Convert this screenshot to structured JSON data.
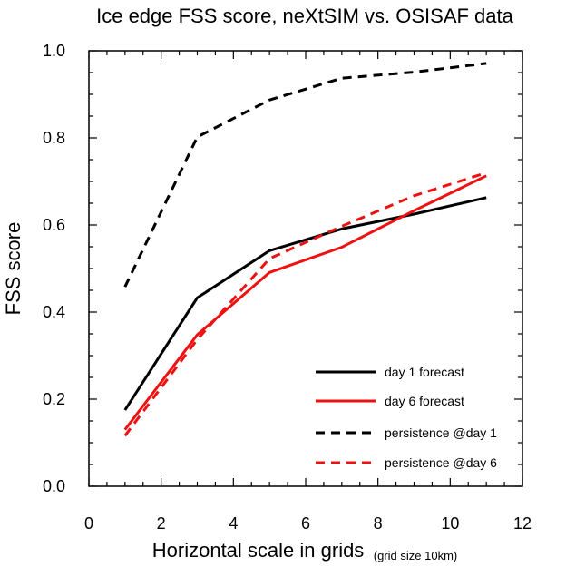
{
  "chart_data": {
    "type": "line",
    "title": "Ice edge FSS score, neXtSIM vs. OSISAF data",
    "xlabel": "Horizontal scale in grids",
    "xlabel_note": "(grid size 10km)",
    "ylabel": "FSS score",
    "xlim": [
      0,
      12
    ],
    "ylim": [
      0,
      1.0
    ],
    "xticks": [
      0,
      2,
      4,
      6,
      8,
      10,
      12
    ],
    "xtick_labels": [
      "0",
      "2",
      "4",
      "6",
      "8",
      "10",
      "12"
    ],
    "yticks": [
      0,
      0.2,
      0.4,
      0.6,
      0.8,
      1.0
    ],
    "ytick_labels": [
      "0.0",
      "0.2",
      "0.4",
      "0.6",
      "0.8",
      "1.0"
    ],
    "grid": false,
    "legend_position": "bottom-right",
    "series": [
      {
        "name": "day 1 forecast",
        "color": "#000000",
        "dash": "solid",
        "x": [
          1,
          3,
          5,
          7,
          9,
          11
        ],
        "values": [
          0.175,
          0.433,
          0.541,
          0.591,
          0.625,
          0.663
        ]
      },
      {
        "name": "day 6 forecast",
        "color": "#ee1111",
        "dash": "solid",
        "x": [
          1,
          3,
          5,
          7,
          9,
          11
        ],
        "values": [
          0.13,
          0.348,
          0.491,
          0.549,
          0.633,
          0.713
        ]
      },
      {
        "name": "persistence @day 1",
        "color": "#000000",
        "dash": "dashed",
        "x": [
          1,
          3,
          5,
          7,
          9,
          11
        ],
        "values": [
          0.458,
          0.802,
          0.887,
          0.937,
          0.951,
          0.971
        ]
      },
      {
        "name": "persistence @day 6",
        "color": "#ee1111",
        "dash": "dashed",
        "x": [
          1,
          3,
          5,
          7,
          9,
          11
        ],
        "values": [
          0.116,
          0.337,
          0.523,
          0.597,
          0.667,
          0.72
        ]
      }
    ]
  }
}
